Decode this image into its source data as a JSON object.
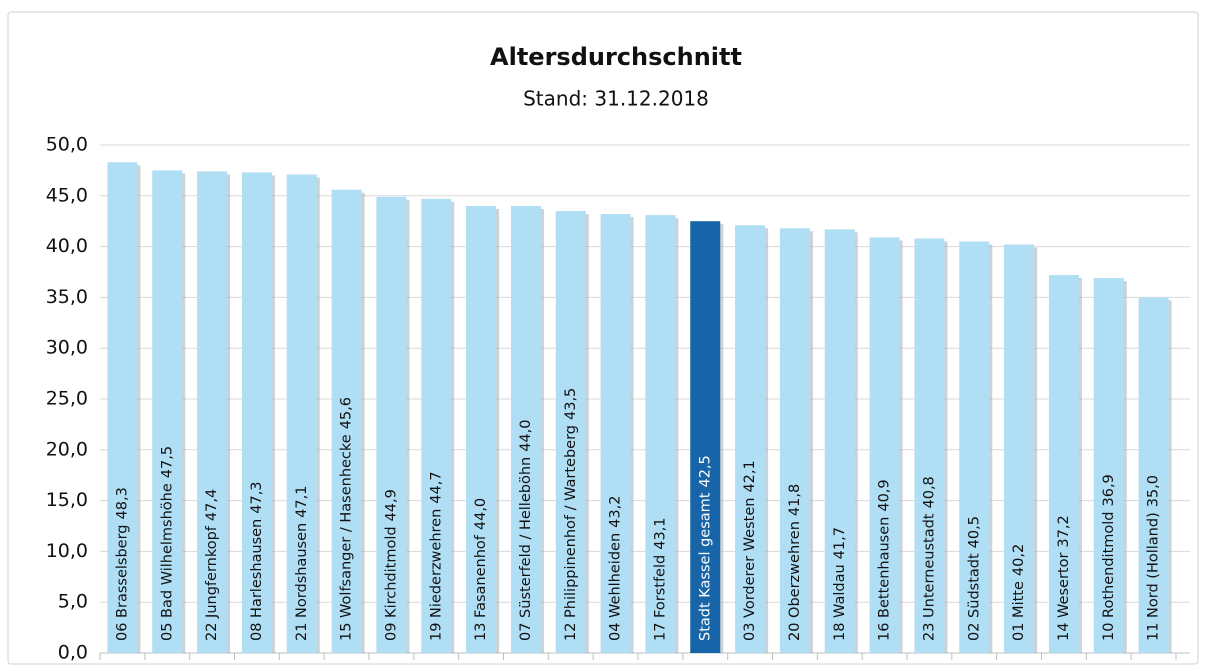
{
  "chart_data": {
    "type": "bar",
    "title": "Altersdurchschnitt",
    "subtitle": "Stand: 31.12.2018",
    "categories": [
      "06 Brasselsberg",
      "05 Bad Wilhelmshöhe",
      "22 Jungfernkopf",
      "08 Harleshausen",
      "21 Nordshausen",
      "15 Wolfsanger / Hasenhecke",
      "09 Kirchditmold",
      "19 Niederzwehren",
      "13 Fasanenhof",
      "07 Süsterfeld / Helleböhn",
      "12 Philippinenhof / Warteberg",
      "04 Wehlheiden",
      "17 Forstfeld",
      "Stadt Kassel gesamt",
      "03 Vorderer Westen",
      "20 Oberzwehren",
      "18 Waldau",
      "16 Bettenhausen",
      "23 Unterneustadt",
      "02 Südstadt",
      "01 Mitte",
      "14 Wesertor",
      "10 Rothenditmold",
      "11 Nord (Holland)"
    ],
    "values": [
      48.3,
      47.5,
      47.4,
      47.3,
      47.1,
      45.6,
      44.9,
      44.7,
      44.0,
      44.0,
      43.5,
      43.2,
      43.1,
      42.5,
      42.1,
      41.8,
      41.7,
      40.9,
      40.8,
      40.5,
      40.2,
      37.2,
      36.9,
      35.0
    ],
    "value_labels": [
      "48,3",
      "47,5",
      "47,4",
      "47,3",
      "47,1",
      "45,6",
      "44,9",
      "44,7",
      "44,0",
      "44,0",
      "43,5",
      "43,2",
      "43,1",
      "42,5",
      "42,1",
      "41,8",
      "41,7",
      "40,9",
      "40,8",
      "40,5",
      "40,2",
      "37,2",
      "36,9",
      "35,0"
    ],
    "colors": [
      "#b0def4",
      "#b0def4",
      "#b0def4",
      "#b0def4",
      "#b0def4",
      "#b0def4",
      "#b0def4",
      "#b0def4",
      "#b0def4",
      "#b0def4",
      "#b0def4",
      "#b0def4",
      "#b0def4",
      "#1765a8",
      "#b0def4",
      "#b0def4",
      "#b0def4",
      "#b0def4",
      "#b0def4",
      "#b0def4",
      "#b0def4",
      "#b0def4",
      "#b0def4",
      "#b0def4"
    ],
    "ylim": [
      0,
      50
    ],
    "yticks": [
      {
        "value": 0,
        "label": "0,0"
      },
      {
        "value": 5,
        "label": "5,0"
      },
      {
        "value": 10,
        "label": "10,0"
      },
      {
        "value": 15,
        "label": "15,0"
      },
      {
        "value": 20,
        "label": "20,0"
      },
      {
        "value": 25,
        "label": "25,0"
      },
      {
        "value": 30,
        "label": "30,0"
      },
      {
        "value": 35,
        "label": "35,0"
      },
      {
        "value": 40,
        "label": "40,0"
      },
      {
        "value": 45,
        "label": "45,0"
      },
      {
        "value": 50,
        "label": "50,0"
      }
    ],
    "grid": true
  }
}
